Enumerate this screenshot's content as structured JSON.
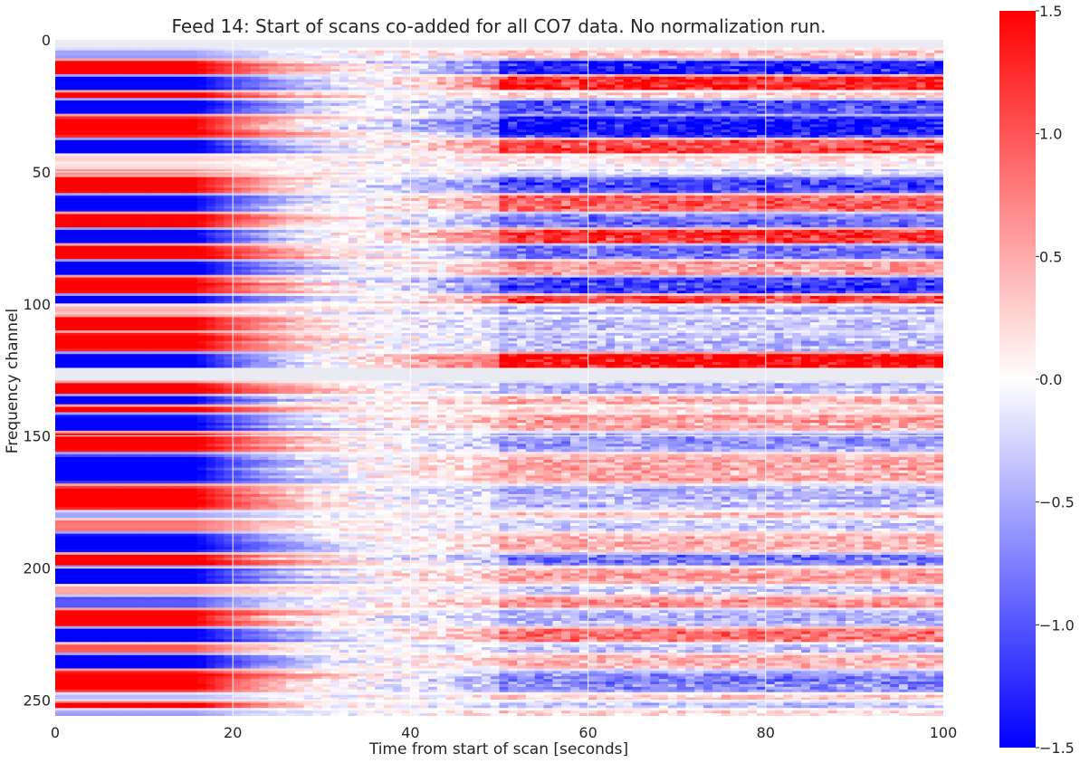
{
  "chart_data": {
    "type": "heatmap",
    "title": "Feed 14: Start of scans co-added for all CO7 data. No normalization run.",
    "xlabel": "Time from start of scan [seconds]",
    "ylabel": "Frequency channel",
    "xlim": [
      0,
      100
    ],
    "ylim": [
      256,
      0
    ],
    "xticks": [
      0,
      20,
      40,
      60,
      80,
      100
    ],
    "yticks": [
      0,
      50,
      100,
      150,
      200,
      250
    ],
    "colorbar": {
      "cmap": "bwr",
      "vmin": -1.5,
      "vmax": 1.5,
      "ticks": [
        1.5,
        1.0,
        0.5,
        0.0,
        -0.5,
        -1.0,
        -1.5
      ],
      "tick_labels": [
        "1.5",
        "1.0",
        "0.5",
        "0.0",
        "−0.5",
        "−1.0",
        "−1.5"
      ]
    },
    "masked_channel_ranges": [
      [
        0,
        3
      ],
      [
        124,
        129
      ]
    ],
    "grid": true,
    "description_bands": [
      {
        "ch": [
          3,
          7
        ],
        "start": -0.6,
        "late": 0.3
      },
      {
        "ch": [
          7,
          13
        ],
        "start": 1.6,
        "late": -1.3
      },
      {
        "ch": [
          13,
          19
        ],
        "start": -1.6,
        "late": 1.3
      },
      {
        "ch": [
          19,
          22
        ],
        "start": 1.6,
        "late": 0.2
      },
      {
        "ch": [
          22,
          28
        ],
        "start": -1.6,
        "late": -1.0
      },
      {
        "ch": [
          28,
          37
        ],
        "start": 1.6,
        "late": -1.4
      },
      {
        "ch": [
          37,
          43
        ],
        "start": -1.6,
        "late": 1.1
      },
      {
        "ch": [
          43,
          48
        ],
        "start": 0.2,
        "late": 0.1
      },
      {
        "ch": [
          48,
          51
        ],
        "start": 0.6,
        "late": -0.2
      },
      {
        "ch": [
          51,
          58
        ],
        "start": 1.6,
        "late": -1.0
      },
      {
        "ch": [
          58,
          65
        ],
        "start": -1.6,
        "late": 0.9
      },
      {
        "ch": [
          65,
          71
        ],
        "start": 1.6,
        "late": -0.8
      },
      {
        "ch": [
          71,
          77
        ],
        "start": -1.6,
        "late": 1.2
      },
      {
        "ch": [
          77,
          83
        ],
        "start": 1.6,
        "late": -0.9
      },
      {
        "ch": [
          83,
          89
        ],
        "start": -1.6,
        "late": 0.6
      },
      {
        "ch": [
          89,
          96
        ],
        "start": 1.6,
        "late": -1.1
      },
      {
        "ch": [
          96,
          100
        ],
        "start": -1.6,
        "late": 1.1
      },
      {
        "ch": [
          100,
          104
        ],
        "start": 0.4,
        "late": -0.4
      },
      {
        "ch": [
          104,
          110
        ],
        "start": 1.6,
        "late": -0.3
      },
      {
        "ch": [
          110,
          118
        ],
        "start": 1.6,
        "late": -0.4
      },
      {
        "ch": [
          118,
          124
        ],
        "start": -1.6,
        "late": 1.5
      },
      {
        "ch": [
          129,
          134
        ],
        "start": 1.6,
        "late": -0.4
      },
      {
        "ch": [
          134,
          138
        ],
        "start": -1.6,
        "late": 0.4
      },
      {
        "ch": [
          138,
          141
        ],
        "start": 1.6,
        "late": 0.2
      },
      {
        "ch": [
          141,
          148
        ],
        "start": -1.6,
        "late": 0.5
      },
      {
        "ch": [
          148,
          156
        ],
        "start": 1.6,
        "late": -0.6
      },
      {
        "ch": [
          156,
          168
        ],
        "start": -1.6,
        "late": 0.5
      },
      {
        "ch": [
          168,
          178
        ],
        "start": 1.6,
        "late": -0.4
      },
      {
        "ch": [
          178,
          181
        ],
        "start": -0.6,
        "late": 0.3
      },
      {
        "ch": [
          181,
          186
        ],
        "start": 0.8,
        "late": -0.3
      },
      {
        "ch": [
          186,
          194
        ],
        "start": -1.6,
        "late": 0.4
      },
      {
        "ch": [
          194,
          199
        ],
        "start": 1.6,
        "late": -0.8
      },
      {
        "ch": [
          199,
          206
        ],
        "start": -1.6,
        "late": 0.5
      },
      {
        "ch": [
          206,
          210
        ],
        "start": 0.5,
        "late": -0.3
      },
      {
        "ch": [
          210,
          215
        ],
        "start": -1.0,
        "late": 0.6
      },
      {
        "ch": [
          215,
          222
        ],
        "start": 1.6,
        "late": -0.4
      },
      {
        "ch": [
          222,
          228
        ],
        "start": -1.6,
        "late": 0.8
      },
      {
        "ch": [
          228,
          232
        ],
        "start": 1.0,
        "late": -0.3
      },
      {
        "ch": [
          232,
          238
        ],
        "start": -1.6,
        "late": 0.4
      },
      {
        "ch": [
          238,
          247
        ],
        "start": 1.6,
        "late": -0.7
      },
      {
        "ch": [
          247,
          250
        ],
        "start": -0.4,
        "late": 0.3
      },
      {
        "ch": [
          250,
          253
        ],
        "start": 1.6,
        "late": -0.4
      },
      {
        "ch": [
          253,
          256
        ],
        "start": -0.6,
        "late": 0.2
      }
    ]
  }
}
